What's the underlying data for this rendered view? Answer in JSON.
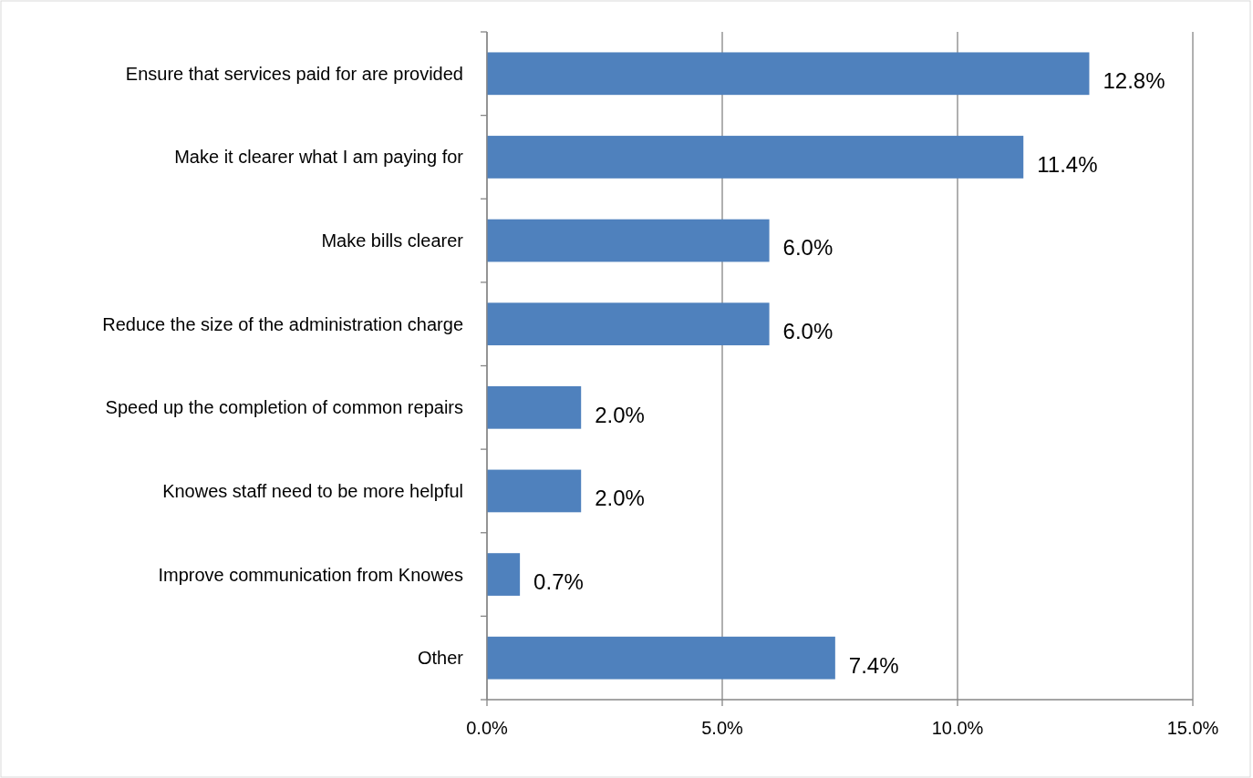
{
  "chart_data": {
    "type": "bar",
    "orientation": "horizontal",
    "categories": [
      "Ensure that services paid for are provided",
      "Make it clearer what I am paying for",
      "Make bills clearer",
      "Reduce the size of the administration charge",
      "Speed up the completion of common repairs",
      "Knowes staff need to be more helpful",
      "Improve communication from Knowes",
      "Other"
    ],
    "values": [
      12.8,
      11.4,
      6.0,
      6.0,
      2.0,
      2.0,
      0.7,
      7.4
    ],
    "value_labels": [
      "12.8%",
      "11.4%",
      "6.0%",
      "6.0%",
      "2.0%",
      "2.0%",
      "0.7%",
      "7.4%"
    ],
    "color": "#4f81bd",
    "xlim": [
      0,
      15
    ],
    "xticks": [
      {
        "value": 0,
        "label": "0.0%"
      },
      {
        "value": 5,
        "label": "5.0%"
      },
      {
        "value": 10,
        "label": "10.0%"
      },
      {
        "value": 15,
        "label": "15.0%"
      }
    ],
    "grid": "x"
  }
}
